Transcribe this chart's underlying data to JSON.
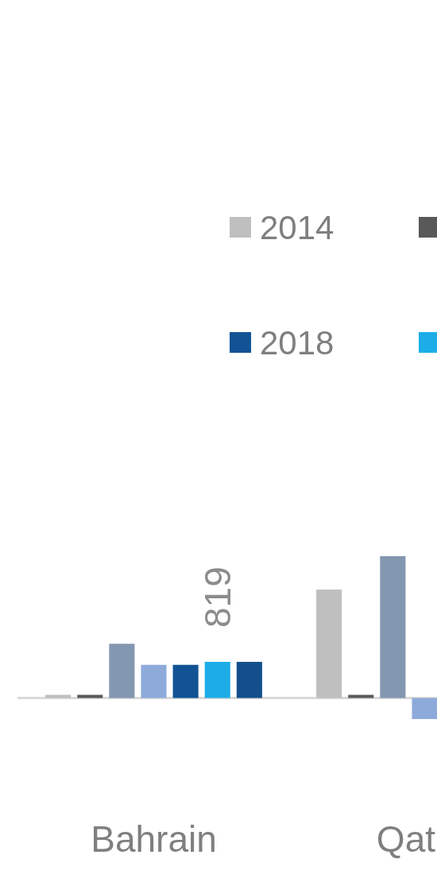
{
  "chart_data": {
    "type": "bar",
    "categories": [
      "Bahrain",
      "Qat"
    ],
    "series": [
      {
        "name": "2014",
        "color": "#bfbfbf",
        "values": [
          70,
          2460
        ]
      },
      {
        "color": "#595959",
        "values": [
          70,
          70
        ]
      },
      {
        "color": "#8497b0",
        "values": [
          1230,
          3220
        ]
      },
      {
        "color": "#8eaadb",
        "values": [
          750,
          -480
        ]
      },
      {
        "name": "2018",
        "color": "#115395",
        "values": [
          750,
          null
        ]
      },
      {
        "color": "#1cade8",
        "values": [
          819,
          null
        ],
        "value_labels": [
          "819",
          null
        ]
      },
      {
        "color": "#134f8c",
        "values": [
          820,
          null
        ]
      }
    ],
    "legend": "top"
  }
}
